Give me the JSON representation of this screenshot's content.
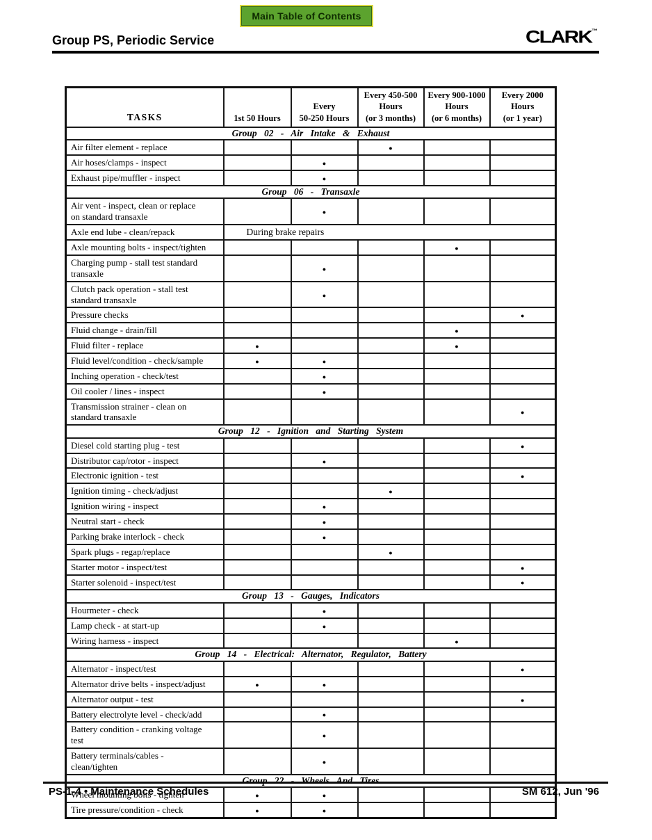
{
  "toolbar": {
    "toc_button_label": "Main Table of Contents"
  },
  "header": {
    "title": "Group PS, Periodic Service",
    "brand": "CLARK",
    "trademark": "™"
  },
  "footer": {
    "left": "PS-1-4  •  Maintenance Schedules",
    "right": "SM 612, Jun '96"
  },
  "colors": {
    "button_bg": "#5CA32E",
    "button_border_outer": "#D9D93F",
    "button_border_inner": "#33691A",
    "button_text": "#0E2B00",
    "rule": "#000000",
    "table_line": "#1B1B1B"
  },
  "table": {
    "dot_glyph": "●",
    "columns": [
      {
        "id": "tasks",
        "lines": [
          "TASKS"
        ]
      },
      {
        "id": "first-50-hours",
        "lines": [
          "1st 50 Hours"
        ]
      },
      {
        "id": "every-50-250-hours",
        "lines": [
          "Every",
          "50-250 Hours"
        ]
      },
      {
        "id": "every-450-500-hours",
        "lines": [
          "Every 450-500",
          "Hours",
          "(or 3 months)"
        ]
      },
      {
        "id": "every-900-1000-hours",
        "lines": [
          "Every 900-1000",
          "Hours",
          "(or 6 months)"
        ]
      },
      {
        "id": "every-2000-hours",
        "lines": [
          "Every 2000",
          "Hours",
          "(or 1 year)"
        ]
      }
    ],
    "rows": [
      {
        "type": "group",
        "label": "Group 02 - Air Intake & Exhaust"
      },
      {
        "type": "task",
        "task": "Air filter element - replace",
        "marks": [
          0,
          0,
          1,
          0,
          0
        ]
      },
      {
        "type": "task",
        "task": "Air hoses/clamps - inspect",
        "marks": [
          0,
          1,
          0,
          0,
          0
        ]
      },
      {
        "type": "task",
        "task": "Exhaust pipe/muffler - inspect",
        "marks": [
          0,
          1,
          0,
          0,
          0
        ]
      },
      {
        "type": "group",
        "label": "Group 06 - Transaxle"
      },
      {
        "type": "task",
        "task": "Air vent - inspect, clean or replace\non standard transaxle",
        "marks": [
          0,
          1,
          0,
          0,
          0
        ]
      },
      {
        "type": "task",
        "task": "Axle end lube - clean/repack",
        "note": "During brake repairs"
      },
      {
        "type": "task",
        "task": "Axle mounting bolts - inspect/tighten",
        "marks": [
          0,
          0,
          0,
          1,
          0
        ]
      },
      {
        "type": "task",
        "task": "Charging pump - stall test standard\ntransaxle",
        "marks": [
          0,
          1,
          0,
          0,
          0
        ]
      },
      {
        "type": "task",
        "task": "Clutch pack operation - stall test\nstandard transaxle",
        "marks": [
          0,
          1,
          0,
          0,
          0
        ]
      },
      {
        "type": "task",
        "task": "Pressure checks",
        "marks": [
          0,
          0,
          0,
          0,
          1
        ]
      },
      {
        "type": "task",
        "task": "Fluid change - drain/fill",
        "marks": [
          0,
          0,
          0,
          1,
          0
        ]
      },
      {
        "type": "task",
        "task": "Fluid filter - replace",
        "marks": [
          1,
          0,
          0,
          1,
          0
        ]
      },
      {
        "type": "task",
        "task": "Fluid level/condition - check/sample",
        "marks": [
          1,
          1,
          0,
          0,
          0
        ]
      },
      {
        "type": "task",
        "task": "Inching operation - check/test",
        "marks": [
          0,
          1,
          0,
          0,
          0
        ]
      },
      {
        "type": "task",
        "task": "Oil cooler / lines - inspect",
        "marks": [
          0,
          1,
          0,
          0,
          0
        ]
      },
      {
        "type": "task",
        "task": "Transmission strainer - clean on\nstandard transaxle",
        "marks": [
          0,
          0,
          0,
          0,
          1
        ]
      },
      {
        "type": "group",
        "label": "Group 12 - Ignition and Starting System"
      },
      {
        "type": "task",
        "task": "Diesel cold starting plug - test",
        "marks": [
          0,
          0,
          0,
          0,
          1
        ]
      },
      {
        "type": "task",
        "task": "Distributor cap/rotor - inspect",
        "marks": [
          0,
          1,
          0,
          0,
          0
        ]
      },
      {
        "type": "task",
        "task": "Electronic ignition - test",
        "marks": [
          0,
          0,
          0,
          0,
          1
        ]
      },
      {
        "type": "task",
        "task": "Ignition timing - check/adjust",
        "marks": [
          0,
          0,
          1,
          0,
          0
        ]
      },
      {
        "type": "task",
        "task": "Ignition wiring - inspect",
        "marks": [
          0,
          1,
          0,
          0,
          0
        ]
      },
      {
        "type": "task",
        "task": "Neutral start - check",
        "marks": [
          0,
          1,
          0,
          0,
          0
        ]
      },
      {
        "type": "task",
        "task": "Parking brake interlock - check",
        "marks": [
          0,
          1,
          0,
          0,
          0
        ]
      },
      {
        "type": "task",
        "task": "Spark plugs - regap/replace",
        "marks": [
          0,
          0,
          1,
          0,
          0
        ]
      },
      {
        "type": "task",
        "task": "Starter motor - inspect/test",
        "marks": [
          0,
          0,
          0,
          0,
          1
        ]
      },
      {
        "type": "task",
        "task": "Starter solenoid - inspect/test",
        "marks": [
          0,
          0,
          0,
          0,
          1
        ]
      },
      {
        "type": "group",
        "label": "Group 13 - Gauges, Indicators"
      },
      {
        "type": "task",
        "task": "Hourmeter - check",
        "marks": [
          0,
          1,
          0,
          0,
          0
        ]
      },
      {
        "type": "task",
        "task": "Lamp check - at start-up",
        "marks": [
          0,
          1,
          0,
          0,
          0
        ]
      },
      {
        "type": "task",
        "task": "Wiring harness - inspect",
        "marks": [
          0,
          0,
          0,
          1,
          0
        ]
      },
      {
        "type": "group",
        "label": "Group 14 - Electrical: Alternator, Regulator, Battery"
      },
      {
        "type": "task",
        "task": "Alternator - inspect/test",
        "marks": [
          0,
          0,
          0,
          0,
          1
        ]
      },
      {
        "type": "task",
        "task": "Alternator drive belts - inspect/adjust",
        "marks": [
          1,
          1,
          0,
          0,
          0
        ]
      },
      {
        "type": "task",
        "task": "Alternator output - test",
        "marks": [
          0,
          0,
          0,
          0,
          1
        ]
      },
      {
        "type": "task",
        "task": "Battery electrolyte level - check/add",
        "marks": [
          0,
          1,
          0,
          0,
          0
        ]
      },
      {
        "type": "task",
        "task": "Battery condition - cranking voltage\ntest",
        "marks": [
          0,
          1,
          0,
          0,
          0
        ]
      },
      {
        "type": "task",
        "task": "Battery terminals/cables -\nclean/tighten",
        "marks": [
          0,
          1,
          0,
          0,
          0
        ]
      },
      {
        "type": "group",
        "label": "Group 22 - Wheels And Tires"
      },
      {
        "type": "task",
        "task": "Wheel mounting bolts - tighten",
        "marks": [
          1,
          1,
          0,
          0,
          0
        ]
      },
      {
        "type": "task",
        "task": "Tire pressure/condition - check",
        "marks": [
          1,
          1,
          0,
          0,
          0
        ]
      }
    ]
  }
}
